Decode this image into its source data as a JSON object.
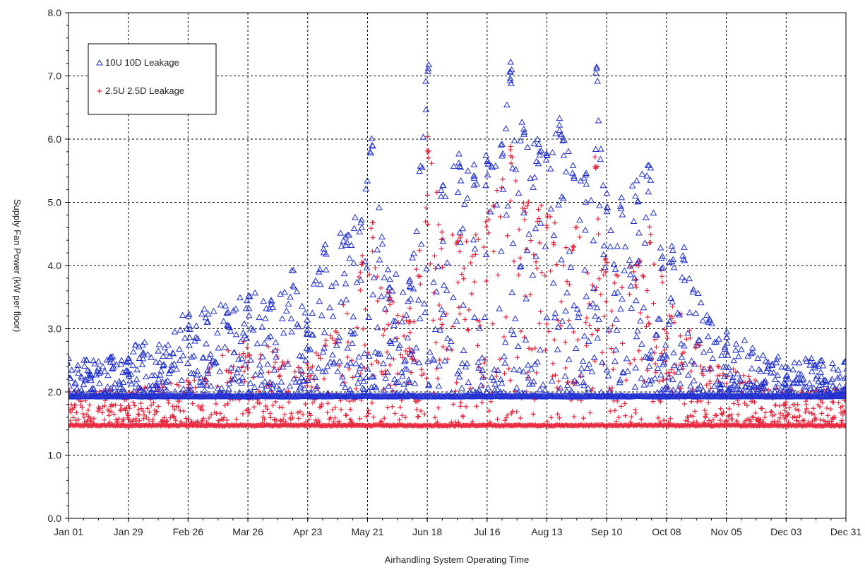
{
  "chart_data": {
    "type": "scatter",
    "title": "",
    "xlabel": "Airhandling System Operating Time",
    "ylabel": "Supply Fan Power (kW per floor)",
    "xlim": [
      0,
      364
    ],
    "ylim": [
      0,
      8
    ],
    "x_unit": "day of year",
    "x_tick_labels": [
      "Jan 01",
      "Jan 29",
      "Feb 26",
      "Mar 26",
      "Apr 23",
      "May 21",
      "Jun 18",
      "Jul 16",
      "Aug 13",
      "Sep 10",
      "Oct 08",
      "Nov 05",
      "Dec 03",
      "Dec 31"
    ],
    "x_tick_values": [
      0,
      28,
      56,
      84,
      112,
      140,
      168,
      196,
      224,
      252,
      280,
      308,
      336,
      364
    ],
    "y_tick_labels": [
      "0.0",
      "1.0",
      "2.0",
      "3.0",
      "4.0",
      "5.0",
      "6.0",
      "7.0",
      "8.0"
    ],
    "y_tick_values": [
      0,
      1,
      2,
      3,
      4,
      5,
      6,
      7,
      8
    ],
    "grid": true,
    "legend_position": "top-left",
    "series": [
      {
        "name": "10U 10D Leakage",
        "marker": "triangle",
        "color": "#1f2fd0",
        "baseline": 1.93,
        "envelope": [
          [
            0,
            2.5
          ],
          [
            10,
            2.5
          ],
          [
            20,
            2.55
          ],
          [
            28,
            2.6
          ],
          [
            35,
            2.8
          ],
          [
            45,
            2.7
          ],
          [
            56,
            3.3
          ],
          [
            65,
            3.3
          ],
          [
            75,
            3.35
          ],
          [
            84,
            3.55
          ],
          [
            95,
            3.5
          ],
          [
            105,
            4.0
          ],
          [
            112,
            3.2
          ],
          [
            120,
            4.5
          ],
          [
            130,
            4.6
          ],
          [
            137,
            4.8
          ],
          [
            142,
            6.05
          ],
          [
            150,
            3.8
          ],
          [
            160,
            3.9
          ],
          [
            168,
            7.25
          ],
          [
            175,
            5.4
          ],
          [
            183,
            5.8
          ],
          [
            190,
            5.6
          ],
          [
            196,
            5.8
          ],
          [
            203,
            6.0
          ],
          [
            207,
            7.25
          ],
          [
            213,
            6.35
          ],
          [
            220,
            6.0
          ],
          [
            224,
            5.9
          ],
          [
            230,
            6.4
          ],
          [
            236,
            5.6
          ],
          [
            242,
            5.5
          ],
          [
            247,
            7.25
          ],
          [
            252,
            5.2
          ],
          [
            259,
            5.15
          ],
          [
            266,
            5.35
          ],
          [
            272,
            5.6
          ],
          [
            278,
            4.3
          ],
          [
            283,
            4.3
          ],
          [
            288,
            4.3
          ],
          [
            300,
            3.2
          ],
          [
            308,
            2.95
          ],
          [
            320,
            2.7
          ],
          [
            336,
            2.5
          ],
          [
            352,
            2.5
          ],
          [
            364,
            2.5
          ]
        ]
      },
      {
        "name": "2.5U 2.5D Leakage",
        "marker": "plus",
        "color": "#e8243a",
        "baseline": 1.47,
        "envelope": [
          [
            0,
            2.0
          ],
          [
            28,
            2.0
          ],
          [
            56,
            2.2
          ],
          [
            84,
            2.8
          ],
          [
            112,
            2.5
          ],
          [
            125,
            3.0
          ],
          [
            137,
            4.2
          ],
          [
            142,
            4.7
          ],
          [
            150,
            3.6
          ],
          [
            160,
            3.4
          ],
          [
            168,
            6.05
          ],
          [
            175,
            4.6
          ],
          [
            183,
            4.5
          ],
          [
            196,
            4.8
          ],
          [
            207,
            5.9
          ],
          [
            213,
            5.0
          ],
          [
            224,
            4.9
          ],
          [
            236,
            4.5
          ],
          [
            247,
            5.8
          ],
          [
            252,
            4.2
          ],
          [
            266,
            4.0
          ],
          [
            272,
            4.7
          ],
          [
            283,
            3.4
          ],
          [
            300,
            2.5
          ],
          [
            336,
            2.0
          ],
          [
            364,
            2.0
          ]
        ]
      }
    ]
  }
}
